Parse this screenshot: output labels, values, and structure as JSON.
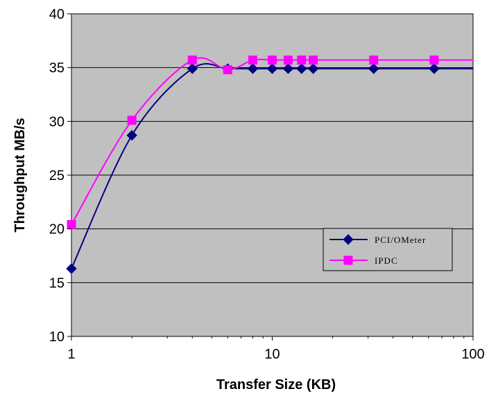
{
  "chart_data": {
    "type": "line",
    "xlabel": "Transfer Size (KB)",
    "ylabel": "Throughput MB/s",
    "x_scale": "log",
    "xlim": [
      1,
      100
    ],
    "ylim": [
      10,
      40
    ],
    "x_ticks": [
      "1",
      "10",
      "100"
    ],
    "y_ticks": [
      "10",
      "15",
      "20",
      "25",
      "30",
      "35",
      "40"
    ],
    "grid": "horizontal",
    "legend_position": "right",
    "plot_background": "#c0c0c0",
    "series": [
      {
        "name": "PCI/OMeter",
        "color": "#000080",
        "marker": "diamond",
        "x": [
          1,
          2,
          4,
          6,
          8,
          10,
          12,
          14,
          16,
          32,
          64
        ],
        "y": [
          16.3,
          28.7,
          34.9,
          34.9,
          34.9,
          34.9,
          34.9,
          34.9,
          34.9,
          34.9,
          34.9
        ]
      },
      {
        "name": "IPDC",
        "color": "#ff00ff",
        "marker": "square",
        "x": [
          1,
          2,
          4,
          6,
          8,
          10,
          12,
          14,
          16,
          32,
          64
        ],
        "y": [
          20.4,
          30.1,
          35.7,
          34.8,
          35.7,
          35.7,
          35.7,
          35.7,
          35.7,
          35.7,
          35.7
        ]
      }
    ]
  }
}
